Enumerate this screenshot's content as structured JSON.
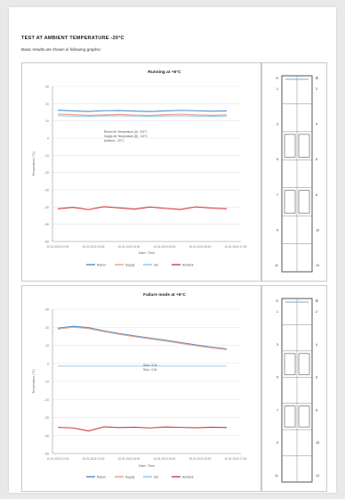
{
  "document": {
    "title": "TEST AT AMBIENT TEMPERATURE -20°C",
    "subtitle": "Basic results are shown in following graphic:"
  },
  "chart_data": [
    {
      "type": "line",
      "title": "Running at +5°C",
      "ylabel": "Temperature (°C)",
      "xlabel": "Date / Time",
      "yticks": [
        "30",
        "20",
        "10",
        "0",
        "-10",
        "-20",
        "-30",
        "-40",
        "-50",
        "-60"
      ],
      "ylim": [
        -60,
        30
      ],
      "xticks": [
        "10.01.2015 12:00",
        "10.01.2015 13:00",
        "10.01.2015 14:00",
        "10.01.2015 15:00",
        "10.01.2015 16:00",
        "10.01.2015 17:00"
      ],
      "annotation": [
        "Return Air Temperature (A) : 5.5°C",
        "Supply Air Temperature (B) : 3.5°C",
        "Ambient : -20°C"
      ],
      "grid": true,
      "legend_position": "bottom",
      "series": [
        {
          "name": "Return",
          "color": "#4f8fd0",
          "values": [
            16.2,
            15.8,
            15.5,
            15.9,
            16.0,
            15.7,
            15.4,
            15.8,
            16.1,
            15.9,
            15.6,
            15.8
          ]
        },
        {
          "name": "Supply",
          "color": "#e8a08a",
          "values": [
            14.0,
            13.6,
            13.3,
            13.5,
            13.8,
            13.4,
            13.2,
            13.6,
            13.9,
            13.5,
            13.3,
            13.5
          ]
        },
        {
          "name": "Set",
          "color": "#8fc4e8",
          "values": [
            13.0,
            12.8,
            12.7,
            12.9,
            13.0,
            12.8,
            12.7,
            12.9,
            13.0,
            12.8,
            12.7,
            12.8
          ]
        },
        {
          "name": "Ambient",
          "color": "#d23a3a",
          "values": [
            -41.0,
            -40.2,
            -41.5,
            -39.8,
            -40.5,
            -41.2,
            -40.0,
            -40.8,
            -41.4,
            -39.9,
            -40.6,
            -41.0
          ]
        }
      ]
    },
    {
      "type": "line",
      "title": "Failure mode at +5°C",
      "ylabel": "Temperature (°C)",
      "xlabel": "Date / Time",
      "yticks": [
        "30",
        "20",
        "10",
        "0",
        "-10",
        "-20",
        "-30",
        "-40",
        "-50"
      ],
      "ylim": [
        -50,
        30
      ],
      "xticks": [
        "10.01.2015 12:00",
        "10.01.2015 13:00",
        "10.01.2015 14:00",
        "10.01.2015 15:00",
        "10.01.2015 16:00",
        "10.01.2015 17:00"
      ],
      "annotation": [
        "Start : 5.0h",
        "Stop : 0.0h"
      ],
      "grid": true,
      "legend_position": "bottom",
      "series": [
        {
          "name": "Return",
          "color": "#4f8fd0",
          "values": [
            19.5,
            20.5,
            19.8,
            18.0,
            16.5,
            15.2,
            14.0,
            12.8,
            11.5,
            10.2,
            9.0,
            8.0
          ]
        },
        {
          "name": "Supply",
          "color": "#e8a08a",
          "values": [
            19.0,
            20.0,
            19.3,
            17.6,
            16.1,
            14.8,
            13.6,
            12.4,
            11.1,
            9.8,
            8.6,
            7.6
          ]
        },
        {
          "name": "Set",
          "color": "#8fc4e8",
          "values": [
            -1.5,
            -1.5,
            -1.5,
            -1.5,
            -1.5,
            -1.5,
            -1.5,
            -1.5,
            -1.5,
            -1.5,
            -1.5,
            -1.5
          ]
        },
        {
          "name": "Ambient",
          "color": "#d23a3a",
          "values": [
            -35.5,
            -35.8,
            -37.5,
            -35.2,
            -35.6,
            -35.4,
            -35.8,
            -35.3,
            -35.5,
            -35.7,
            -35.4,
            -35.6
          ]
        }
      ]
    }
  ],
  "diagrams": [
    {
      "sensors": [
        "A",
        "B",
        "1",
        "2",
        "3",
        "4",
        "5",
        "6",
        "7",
        "8",
        "9",
        "10",
        "11",
        "12"
      ]
    },
    {
      "sensors": [
        "A",
        "B",
        "1",
        "2",
        "3",
        "4",
        "5",
        "6",
        "7",
        "8",
        "9",
        "10",
        "11",
        "12"
      ]
    }
  ]
}
